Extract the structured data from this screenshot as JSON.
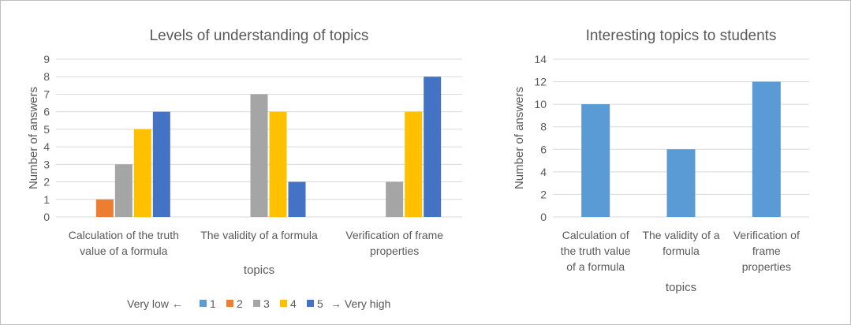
{
  "chart_data": [
    {
      "type": "bar",
      "title": "Levels of understanding of topics",
      "xlabel": "topics",
      "ylabel": "Number of answers",
      "ylim": [
        0,
        9
      ],
      "yticks": [
        0,
        1,
        2,
        3,
        4,
        5,
        6,
        7,
        8,
        9
      ],
      "grid": true,
      "legend_position": "bottom",
      "legend_prefix": "Very low ←",
      "legend_suffix": "→ Very high",
      "categories": [
        [
          "Calculation of the truth",
          "value of a formula"
        ],
        [
          "The validity of a formula"
        ],
        [
          "Verification of frame",
          "properties"
        ]
      ],
      "series": [
        {
          "name": "1",
          "color": "#5b9bd5",
          "values": [
            0,
            0,
            0
          ]
        },
        {
          "name": "2",
          "color": "#ed7d31",
          "values": [
            1,
            0,
            0
          ]
        },
        {
          "name": "3",
          "color": "#a5a5a5",
          "values": [
            3,
            7,
            2
          ]
        },
        {
          "name": "4",
          "color": "#ffc000",
          "values": [
            5,
            6,
            6
          ]
        },
        {
          "name": "5",
          "color": "#4472c4",
          "values": [
            6,
            2,
            8
          ]
        }
      ]
    },
    {
      "type": "bar",
      "title": "Interesting topics to students",
      "xlabel": "topics",
      "ylabel": "Number of answers",
      "ylim": [
        0,
        14
      ],
      "yticks": [
        0,
        2,
        4,
        6,
        8,
        10,
        12,
        14
      ],
      "grid": true,
      "categories": [
        [
          "Calculation of",
          "the truth value",
          "of a formula"
        ],
        [
          "The validity of a",
          "formula"
        ],
        [
          "Verification of",
          "frame",
          "properties"
        ]
      ],
      "series": [
        {
          "color": "#5b9bd5",
          "values": [
            10,
            6,
            12
          ]
        }
      ]
    }
  ]
}
